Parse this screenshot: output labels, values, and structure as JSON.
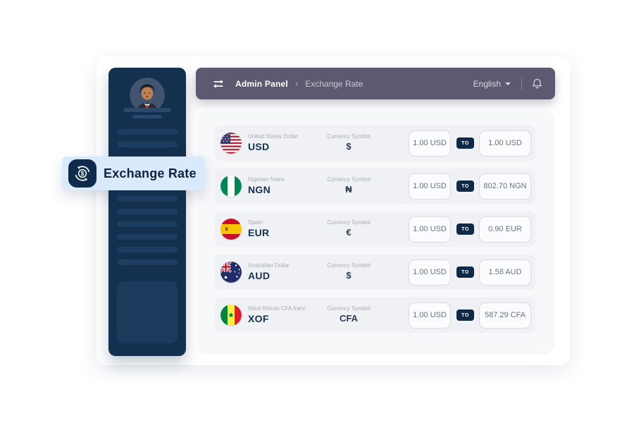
{
  "badge": {
    "label": "Exchange Rate",
    "icon": "currency-exchange-icon",
    "colors": {
      "background": "#DBE9FC",
      "icon_bg": "#0F2B4B",
      "text": "#0E2340"
    }
  },
  "header": {
    "menu_icon": "swap-arrows-icon",
    "app": "Admin Panel",
    "separator": "›",
    "page": "Exchange Rate",
    "language_label": "English",
    "caret_icon": "caret-down-icon",
    "bell_icon": "bell-icon",
    "colors": {
      "background": "#5E5870",
      "text": "#FFFFFF",
      "muted_text": "#CBC7D6"
    }
  },
  "sidebar": {
    "avatar_icon": "user-avatar",
    "skeleton_lines": 10,
    "colors": {
      "background": "#14304F",
      "line": "#1E3E61",
      "block": "#1B3A5C"
    }
  },
  "table": {
    "symbol_label": "Currency Symbol",
    "to_badge": "TO",
    "rows": [
      {
        "flag_icon": "us-flag-icon",
        "name": "United States Dollar",
        "code": "USD",
        "symbol": "$",
        "from": "1.00 USD",
        "to": "1.00 USD"
      },
      {
        "flag_icon": "ng-flag-icon",
        "name": "Nigerian Naira",
        "code": "NGN",
        "symbol": "₦",
        "from": "1.00 USD",
        "to": "802.70 NGN"
      },
      {
        "flag_icon": "es-flag-icon",
        "name": "Spain",
        "code": "EUR",
        "symbol": "€",
        "from": "1.00 USD",
        "to": "0.90 EUR"
      },
      {
        "flag_icon": "au-flag-icon",
        "name": "Australian Dollar",
        "code": "AUD",
        "symbol": "$",
        "from": "1.00 USD",
        "to": "1.58 AUD"
      },
      {
        "flag_icon": "sn-flag-icon",
        "name": "West African CFA franc",
        "code": "XOF",
        "symbol": "CFA",
        "from": "1.00 USD",
        "to": "587.29 CFA"
      }
    ],
    "colors": {
      "panel": "#F7F8FA",
      "row": "#EFF1F4",
      "code_text": "#15314F",
      "badge_bg": "#0E2A47",
      "box_border": "#D8DBE2"
    }
  }
}
